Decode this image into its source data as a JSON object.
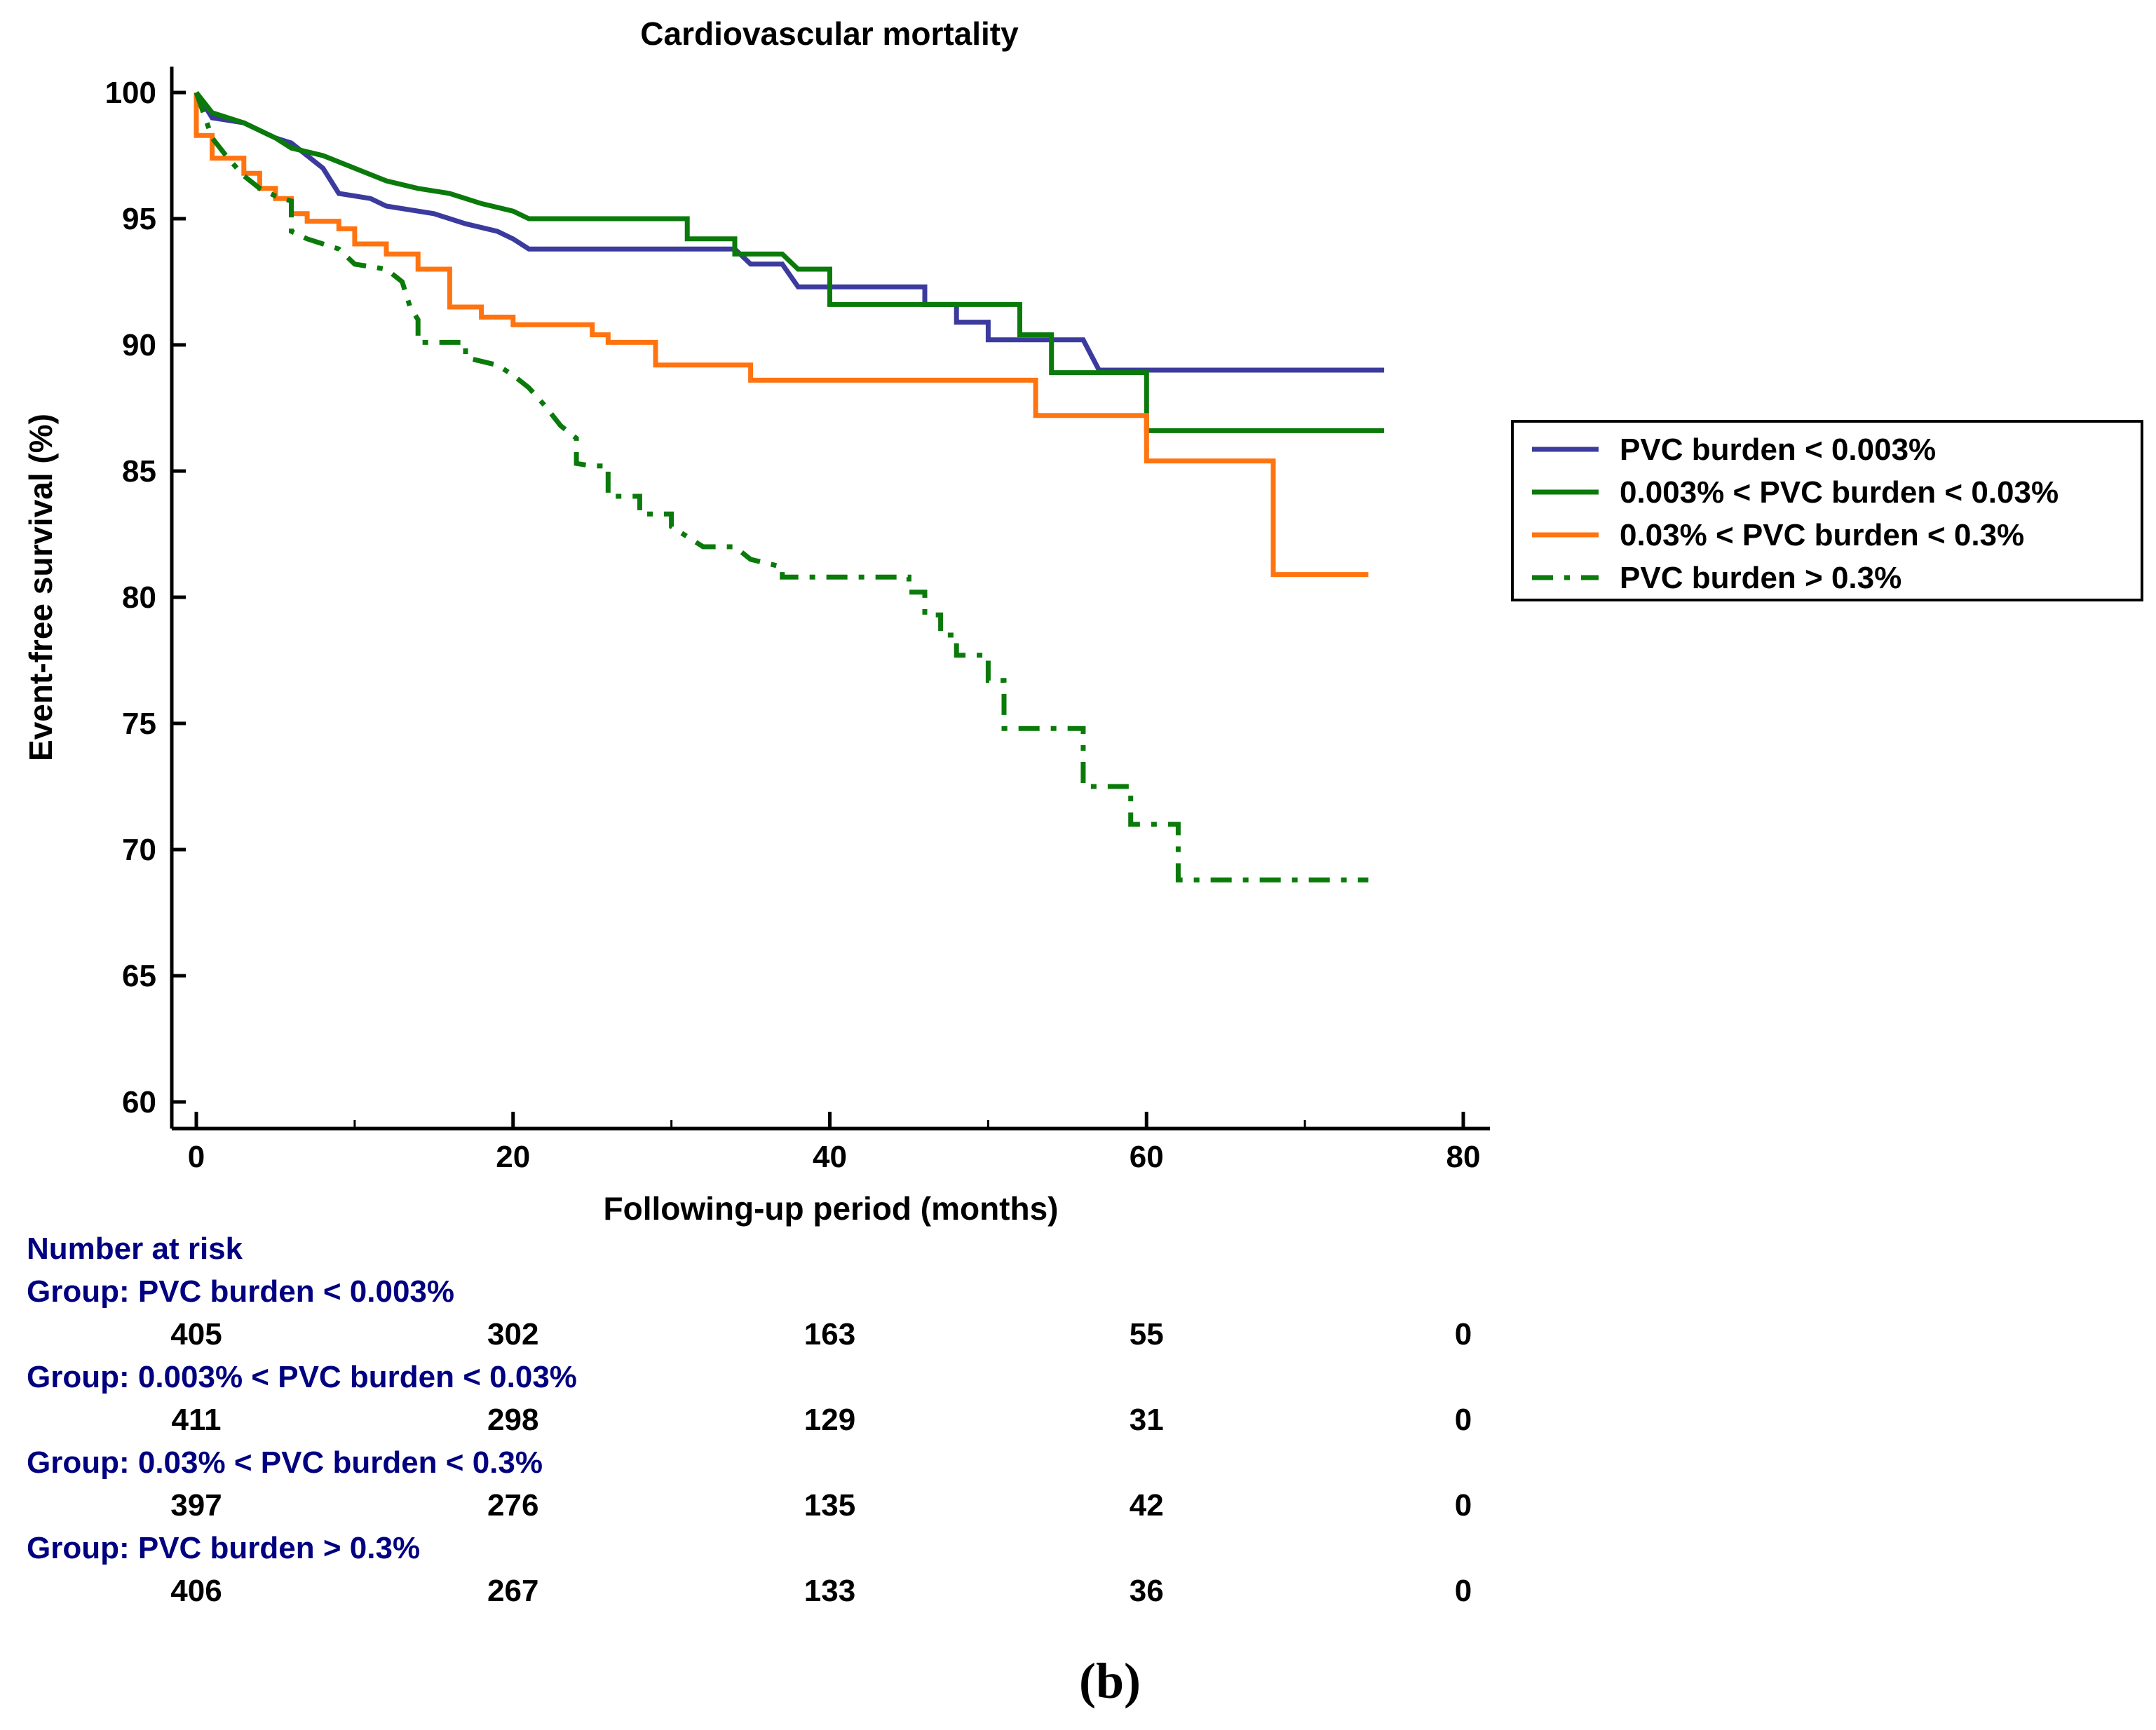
{
  "chart_data": {
    "type": "line",
    "title": "Cardiovascular mortality",
    "xlabel": "Following-up period (months)",
    "ylabel": "Event-free survival (%)",
    "xlim": [
      0,
      80
    ],
    "ylim": [
      60,
      100
    ],
    "x_ticks": [
      0,
      20,
      40,
      60,
      80
    ],
    "y_ticks": [
      100,
      95,
      90,
      85,
      80,
      75,
      70,
      65,
      60
    ],
    "grid": false,
    "legend_position": "right",
    "series": [
      {
        "name": "PVC burden < 0.003%",
        "color": "#3b3b9e",
        "dash": "solid",
        "points": [
          [
            0,
            100
          ],
          [
            1,
            99
          ],
          [
            3,
            98.8
          ],
          [
            5,
            98.2
          ],
          [
            6,
            98
          ],
          [
            7,
            97.5
          ],
          [
            8,
            97
          ],
          [
            8.5,
            96.5
          ],
          [
            9,
            96
          ],
          [
            11,
            95.8
          ],
          [
            12,
            95.5
          ],
          [
            15,
            95.2
          ],
          [
            17,
            94.8
          ],
          [
            19,
            94.5
          ],
          [
            20,
            94.2
          ],
          [
            21,
            93.8
          ],
          [
            25,
            93.8
          ],
          [
            34,
            93.8
          ],
          [
            35,
            93.2
          ],
          [
            37,
            93.2
          ],
          [
            38,
            92.3
          ],
          [
            40,
            92.3
          ],
          [
            46,
            92.3
          ],
          [
            46,
            91.6
          ],
          [
            48,
            91.6
          ],
          [
            48,
            90.9
          ],
          [
            50,
            90.9
          ],
          [
            50,
            90.2
          ],
          [
            56,
            90.2
          ],
          [
            57,
            89
          ],
          [
            75,
            89
          ]
        ]
      },
      {
        "name": "0.003% < PVC burden < 0.03%",
        "color": "#0a7a0a",
        "dash": "solid",
        "points": [
          [
            0,
            100
          ],
          [
            1,
            99.2
          ],
          [
            3,
            98.8
          ],
          [
            5,
            98.2
          ],
          [
            6,
            97.8
          ],
          [
            8,
            97.5
          ],
          [
            10,
            97
          ],
          [
            12,
            96.5
          ],
          [
            14,
            96.2
          ],
          [
            16,
            96
          ],
          [
            18,
            95.6
          ],
          [
            20,
            95.3
          ],
          [
            21,
            95
          ],
          [
            31,
            95
          ],
          [
            31,
            94.2
          ],
          [
            34,
            94.2
          ],
          [
            34,
            93.6
          ],
          [
            37,
            93.6
          ],
          [
            38,
            93
          ],
          [
            40,
            93
          ],
          [
            40,
            91.6
          ],
          [
            46,
            91.6
          ],
          [
            52,
            91.6
          ],
          [
            52,
            90.4
          ],
          [
            54,
            90.4
          ],
          [
            54,
            88.9
          ],
          [
            60,
            88.9
          ],
          [
            60,
            86.6
          ],
          [
            75,
            86.6
          ]
        ]
      },
      {
        "name": "0.03% < PVC burden < 0.3%",
        "color": "#ff7410",
        "dash": "solid",
        "points": [
          [
            0,
            100
          ],
          [
            0,
            98.3
          ],
          [
            1,
            98.3
          ],
          [
            1,
            97.4
          ],
          [
            3,
            97.4
          ],
          [
            3,
            96.8
          ],
          [
            4,
            96.8
          ],
          [
            4,
            96.2
          ],
          [
            5,
            96.2
          ],
          [
            5,
            95.8
          ],
          [
            6,
            95.8
          ],
          [
            6,
            95.2
          ],
          [
            7,
            95.2
          ],
          [
            7,
            94.9
          ],
          [
            9,
            94.9
          ],
          [
            9,
            94.6
          ],
          [
            10,
            94.6
          ],
          [
            10,
            94
          ],
          [
            12,
            94
          ],
          [
            12,
            93.6
          ],
          [
            14,
            93.6
          ],
          [
            14,
            93
          ],
          [
            16,
            93
          ],
          [
            16,
            91.5
          ],
          [
            18,
            91.5
          ],
          [
            18,
            91.1
          ],
          [
            20,
            91.1
          ],
          [
            20,
            90.8
          ],
          [
            25,
            90.8
          ],
          [
            25,
            90.4
          ],
          [
            26,
            90.4
          ],
          [
            26,
            90.1
          ],
          [
            29,
            90.1
          ],
          [
            29,
            89.2
          ],
          [
            35,
            89.2
          ],
          [
            35,
            88.6
          ],
          [
            53,
            88.6
          ],
          [
            53,
            87.2
          ],
          [
            60,
            87.2
          ],
          [
            60,
            85.4
          ],
          [
            68,
            85.4
          ],
          [
            68,
            80.9
          ],
          [
            74,
            80.9
          ]
        ]
      },
      {
        "name": "PVC burden > 0.3%",
        "color": "#0a7a0a",
        "dash": "dashdot",
        "points": [
          [
            0,
            100
          ],
          [
            1,
            98.2
          ],
          [
            2,
            97.4
          ],
          [
            3,
            96.7
          ],
          [
            4,
            96.2
          ],
          [
            5,
            95.9
          ],
          [
            6,
            95.7
          ],
          [
            6,
            94.5
          ],
          [
            7,
            94.2
          ],
          [
            8,
            94
          ],
          [
            9,
            93.8
          ],
          [
            10,
            93.2
          ],
          [
            12,
            93
          ],
          [
            13,
            92.5
          ],
          [
            13.5,
            91.5
          ],
          [
            14,
            91
          ],
          [
            14,
            90.1
          ],
          [
            17,
            90.1
          ],
          [
            17,
            89.5
          ],
          [
            19,
            89.2
          ],
          [
            20,
            88.8
          ],
          [
            21,
            88.3
          ],
          [
            22,
            87.6
          ],
          [
            23,
            86.8
          ],
          [
            24,
            86.3
          ],
          [
            24,
            85.3
          ],
          [
            25,
            85.2
          ],
          [
            26,
            85.2
          ],
          [
            26,
            84
          ],
          [
            28,
            84
          ],
          [
            28,
            83.3
          ],
          [
            30,
            83.3
          ],
          [
            30,
            82.8
          ],
          [
            31,
            82.4
          ],
          [
            32,
            82
          ],
          [
            34,
            82
          ],
          [
            35,
            81.5
          ],
          [
            37,
            81.2
          ],
          [
            37,
            80.8
          ],
          [
            45,
            80.8
          ],
          [
            45,
            80.2
          ],
          [
            46,
            80.2
          ],
          [
            46,
            79.3
          ],
          [
            47,
            79.3
          ],
          [
            47,
            78.5
          ],
          [
            48,
            78.5
          ],
          [
            48,
            77.7
          ],
          [
            50,
            77.7
          ],
          [
            50,
            76.7
          ],
          [
            51,
            76.7
          ],
          [
            51,
            74.8
          ],
          [
            56,
            74.8
          ],
          [
            56,
            72.5
          ],
          [
            59,
            72.5
          ],
          [
            59,
            71
          ],
          [
            62,
            71
          ],
          [
            62,
            68.8
          ],
          [
            74,
            68.8
          ]
        ]
      }
    ],
    "risk_table": {
      "title": "Number at risk",
      "time_points": [
        0,
        20,
        40,
        60,
        80
      ],
      "groups": [
        {
          "label": "Group: PVC burden < 0.003%",
          "counts": [
            "405",
            "302",
            "163",
            "55",
            "0"
          ]
        },
        {
          "label": "Group: 0.003% < PVC burden < 0.03%",
          "counts": [
            "411",
            "298",
            "129",
            "31",
            "0"
          ]
        },
        {
          "label": "Group: 0.03% < PVC burden < 0.3%",
          "counts": [
            "397",
            "276",
            "135",
            "42",
            "0"
          ]
        },
        {
          "label": "Group: PVC burden > 0.3%",
          "counts": [
            "406",
            "267",
            "133",
            "36",
            "0"
          ]
        }
      ]
    }
  },
  "panel_label": "(b)"
}
